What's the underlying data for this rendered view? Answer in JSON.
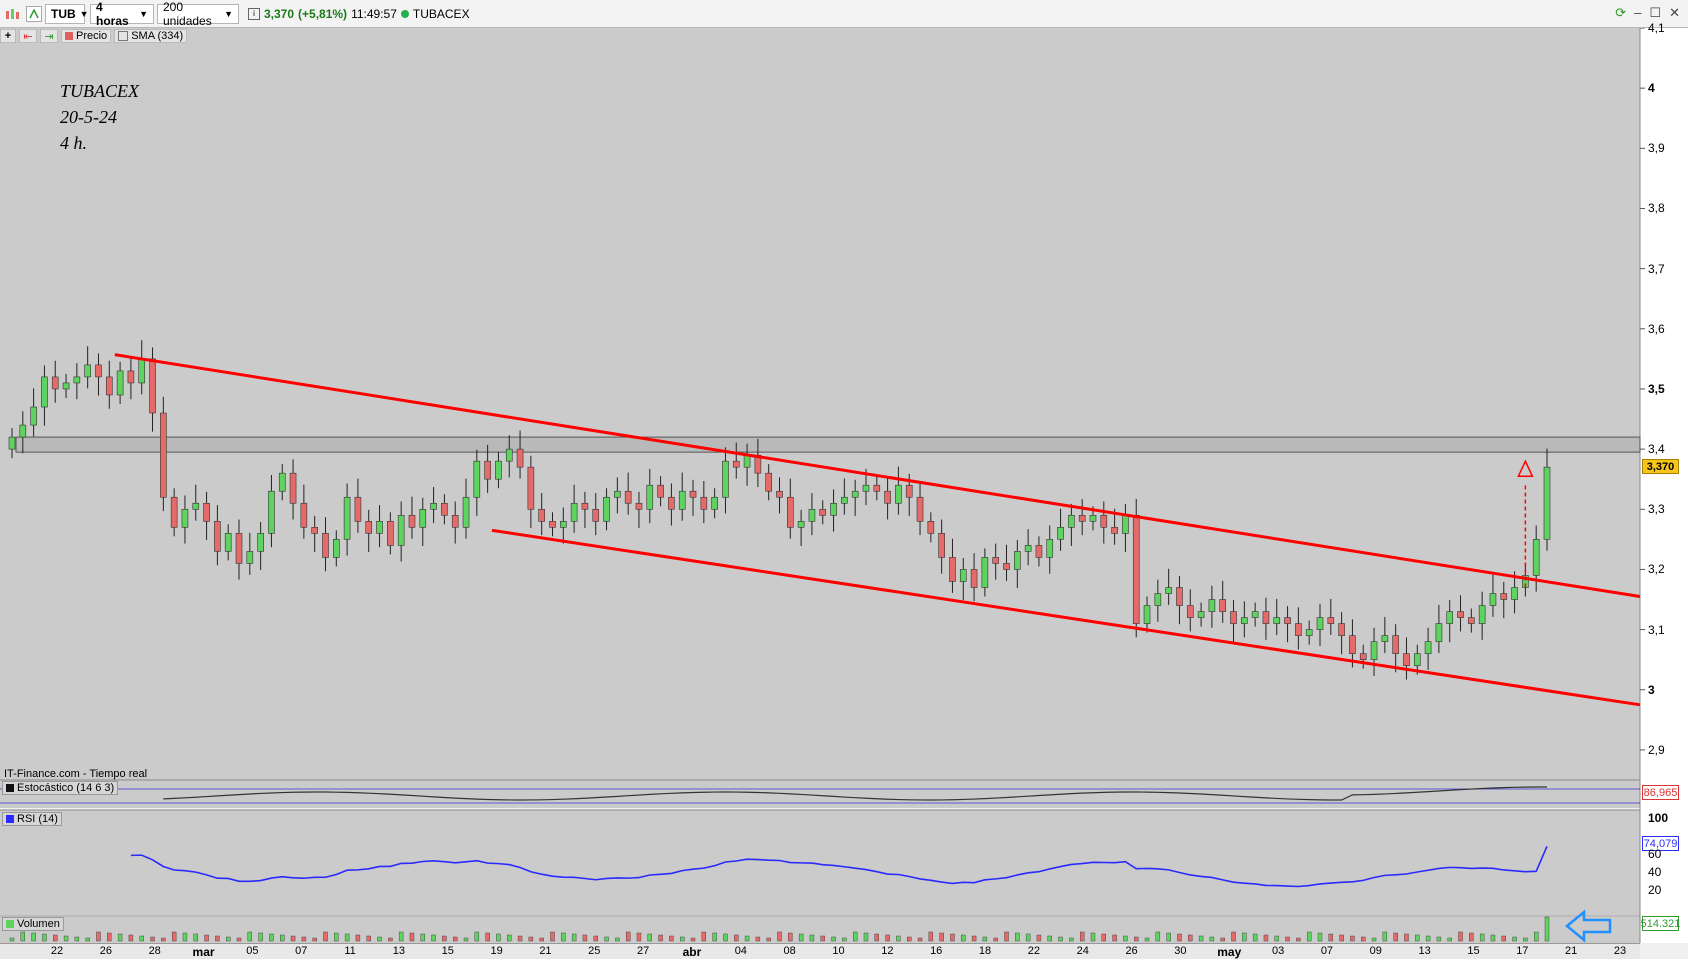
{
  "toolbar": {
    "symbol": "TUB",
    "timeframe": "4 horas",
    "units": "200 unidades",
    "last_price": "3,370",
    "change": "(+5,81%)",
    "time": "11:49:57",
    "name": "TUBACEX"
  },
  "legend": {
    "price": "Precio",
    "sma": "SMA (334)",
    "price_color": "#e06060",
    "sma_color": "#777777"
  },
  "annotation": {
    "line1": "TUBACEX",
    "line2": "20-5-24",
    "line3": "4 h."
  },
  "source_label": "IT-Finance.com - Tiempo real",
  "panels": {
    "stochastic": {
      "label": "Estocástico (14 6 3)",
      "value": "86,965"
    },
    "rsi": {
      "label": "RSI (14)",
      "value": "74,079"
    },
    "volume": {
      "label": "Volumen",
      "value": "514.321"
    }
  },
  "price_tag": "3,370",
  "price_axis": [
    "4,1",
    "4",
    "3,9",
    "3,8",
    "3,7",
    "3,6",
    "3,5",
    "3,4",
    "3,3",
    "3,2",
    "3,1",
    "3",
    "2,9"
  ],
  "rsi_axis": [
    "100",
    "60",
    "40",
    "20"
  ],
  "time_axis": [
    {
      "t": "22",
      "big": false
    },
    {
      "t": "26",
      "big": false
    },
    {
      "t": "28",
      "big": false
    },
    {
      "t": "mar",
      "big": true
    },
    {
      "t": "05",
      "big": false
    },
    {
      "t": "07",
      "big": false
    },
    {
      "t": "11",
      "big": false
    },
    {
      "t": "13",
      "big": false
    },
    {
      "t": "15",
      "big": false
    },
    {
      "t": "19",
      "big": false
    },
    {
      "t": "21",
      "big": false
    },
    {
      "t": "25",
      "big": false
    },
    {
      "t": "27",
      "big": false
    },
    {
      "t": "abr",
      "big": true
    },
    {
      "t": "04",
      "big": false
    },
    {
      "t": "08",
      "big": false
    },
    {
      "t": "10",
      "big": false
    },
    {
      "t": "12",
      "big": false
    },
    {
      "t": "16",
      "big": false
    },
    {
      "t": "18",
      "big": false
    },
    {
      "t": "22",
      "big": false
    },
    {
      "t": "24",
      "big": false
    },
    {
      "t": "26",
      "big": false
    },
    {
      "t": "30",
      "big": false
    },
    {
      "t": "may",
      "big": true
    },
    {
      "t": "03",
      "big": false
    },
    {
      "t": "07",
      "big": false
    },
    {
      "t": "09",
      "big": false
    },
    {
      "t": "13",
      "big": false
    },
    {
      "t": "15",
      "big": false
    },
    {
      "t": "17",
      "big": false
    },
    {
      "t": "21",
      "big": false
    },
    {
      "t": "23",
      "big": false
    }
  ],
  "colors": {
    "up": "#5fd35f",
    "down": "#e56b6b",
    "channel": "#ff0000",
    "rsi_line": "#2a2aff",
    "background": "#cbcbcb"
  },
  "chart_data": {
    "type": "candlestick",
    "y_range": [
      2.85,
      4.1
    ],
    "resistance_band": [
      3.395,
      3.42
    ],
    "channel_upper": [
      [
        0.07,
        3.557
      ],
      [
        1.0,
        3.155
      ]
    ],
    "channel_lower": [
      [
        0.3,
        3.265
      ],
      [
        1.0,
        2.975
      ]
    ],
    "closes": [
      3.42,
      3.44,
      3.47,
      3.52,
      3.5,
      3.51,
      3.52,
      3.54,
      3.52,
      3.49,
      3.53,
      3.51,
      3.55,
      3.46,
      3.32,
      3.27,
      3.3,
      3.31,
      3.28,
      3.23,
      3.26,
      3.21,
      3.23,
      3.26,
      3.33,
      3.36,
      3.31,
      3.27,
      3.26,
      3.22,
      3.25,
      3.32,
      3.28,
      3.26,
      3.28,
      3.24,
      3.29,
      3.27,
      3.3,
      3.31,
      3.29,
      3.27,
      3.32,
      3.38,
      3.35,
      3.38,
      3.4,
      3.37,
      3.3,
      3.28,
      3.27,
      3.28,
      3.31,
      3.3,
      3.28,
      3.32,
      3.33,
      3.31,
      3.3,
      3.34,
      3.32,
      3.3,
      3.33,
      3.32,
      3.3,
      3.32,
      3.38,
      3.37,
      3.39,
      3.36,
      3.33,
      3.32,
      3.27,
      3.28,
      3.3,
      3.29,
      3.31,
      3.32,
      3.33,
      3.34,
      3.33,
      3.31,
      3.34,
      3.32,
      3.28,
      3.26,
      3.22,
      3.18,
      3.2,
      3.17,
      3.22,
      3.21,
      3.2,
      3.23,
      3.24,
      3.22,
      3.25,
      3.27,
      3.29,
      3.28,
      3.29,
      3.27,
      3.26,
      3.29,
      3.11,
      3.14,
      3.16,
      3.17,
      3.14,
      3.12,
      3.13,
      3.15,
      3.13,
      3.11,
      3.12,
      3.13,
      3.11,
      3.12,
      3.11,
      3.09,
      3.1,
      3.12,
      3.11,
      3.09,
      3.06,
      3.05,
      3.08,
      3.09,
      3.06,
      3.04,
      3.06,
      3.08,
      3.11,
      3.13,
      3.12,
      3.11,
      3.14,
      3.16,
      3.15,
      3.17,
      3.19,
      3.25,
      3.37
    ],
    "stochastic_value": 86.965,
    "rsi_value": 74.079,
    "volume_last": 514321
  }
}
